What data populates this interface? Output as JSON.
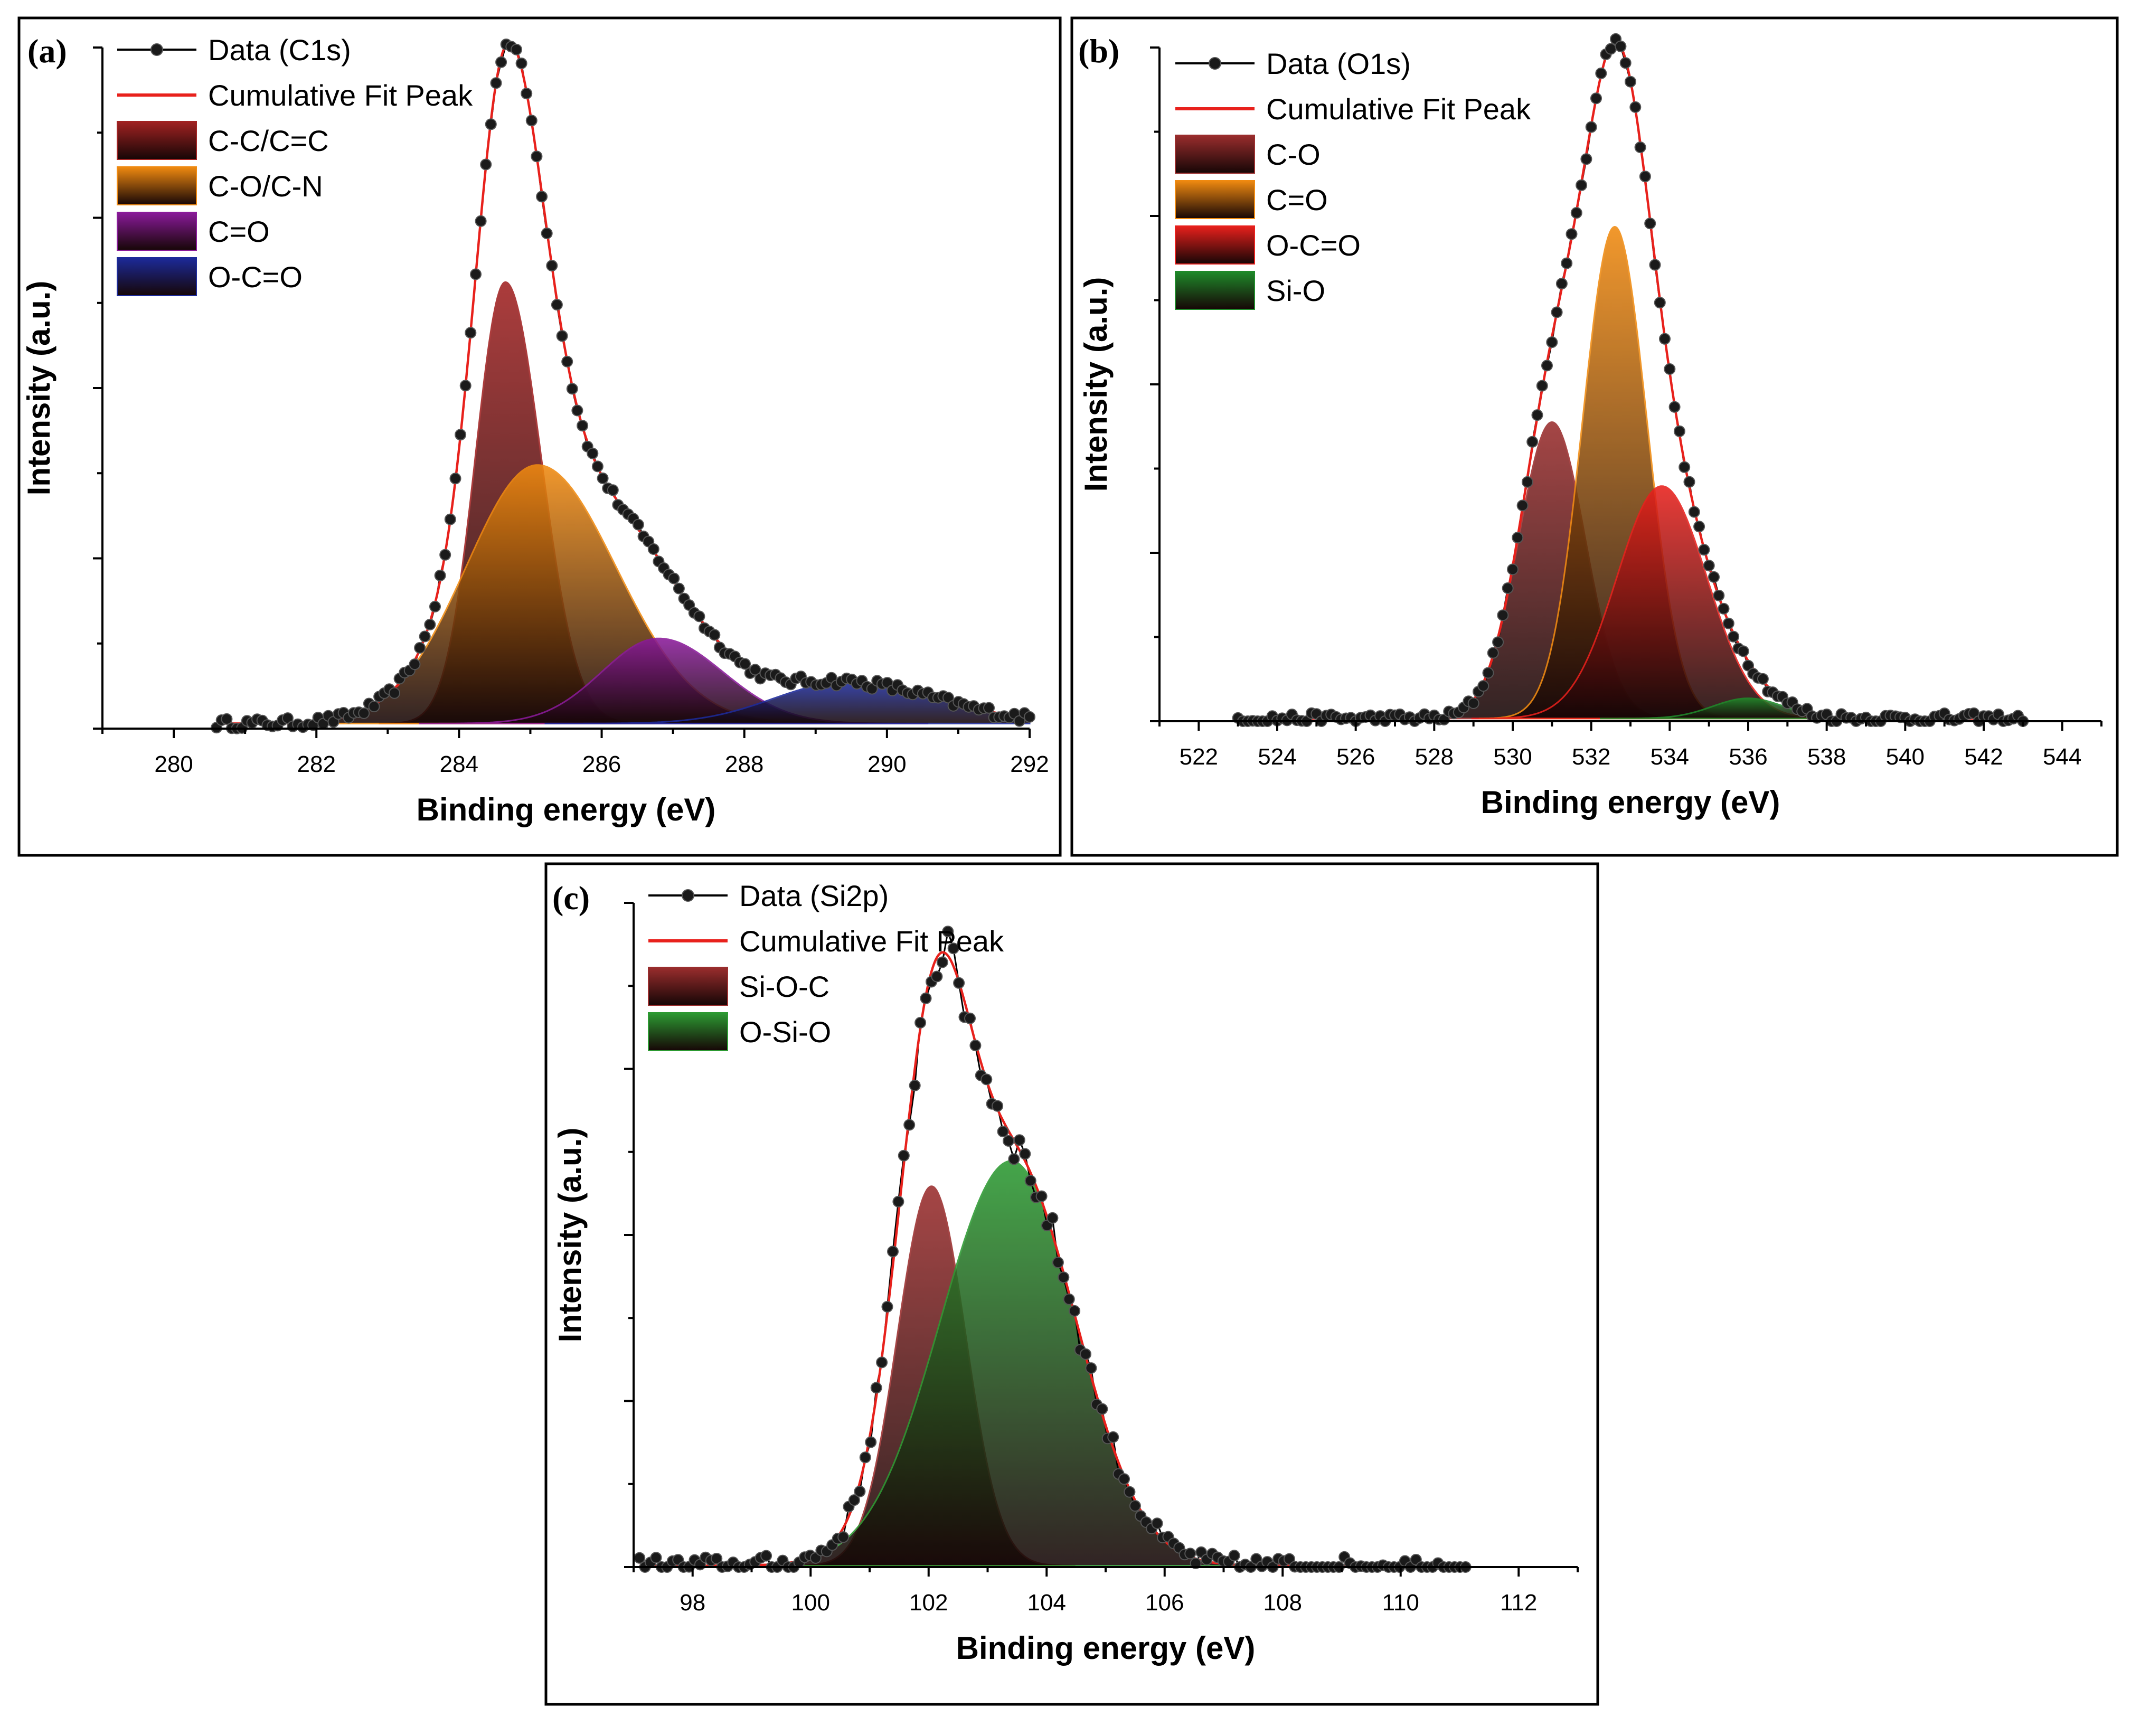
{
  "chart_data": [
    {
      "type": "line",
      "panel": "(a)",
      "xlabel": "Binding energy (eV)",
      "ylabel": "Intensity (a.u.)",
      "xlim": [
        279,
        292
      ],
      "xticks": [
        280,
        282,
        284,
        286,
        288,
        290,
        292
      ],
      "ylim": [
        0,
        1.08
      ],
      "x_data_range": [
        280.6,
        292
      ],
      "baseline": 0.008,
      "legend_position": "top-left",
      "legend": {
        "data_label": "Data (C1s)",
        "fit_label": "Cumulative Fit Peak",
        "components": [
          {
            "name": "C-C/C=C",
            "center": 284.65,
            "height": 0.7,
            "sigma_left": 0.42,
            "sigma_right": 0.5,
            "color": "#a12222"
          },
          {
            "name": "C-O/C-N",
            "center": 285.1,
            "height": 0.41,
            "sigma_left": 1.0,
            "sigma_right": 1.1,
            "color": "#f08a10"
          },
          {
            "name": "C=O",
            "center": 286.8,
            "height": 0.135,
            "sigma_left": 0.8,
            "sigma_right": 0.9,
            "color": "#8a1a9a"
          },
          {
            "name": "O-C=O",
            "center": 289.4,
            "height": 0.065,
            "sigma_left": 1.0,
            "sigma_right": 1.3,
            "color": "#1c2a9a"
          }
        ]
      }
    },
    {
      "type": "line",
      "panel": "(b)",
      "xlabel": "Binding energy (eV)",
      "ylabel": "Intensity (a.u.)",
      "xlim": [
        521,
        545
      ],
      "xticks": [
        522,
        524,
        526,
        528,
        530,
        532,
        534,
        536,
        538,
        540,
        542,
        544
      ],
      "ylim": [
        0,
        1.0
      ],
      "x_data_range": [
        523,
        543
      ],
      "baseline": 0.004,
      "legend_position": "top-left",
      "legend": {
        "data_label": "Data (O1s)",
        "fit_label": "Cumulative Fit Peak",
        "components": [
          {
            "name": "C-O",
            "center": 531.0,
            "height": 0.44,
            "sigma_left": 0.85,
            "sigma_right": 0.85,
            "color": "#9a2d2d"
          },
          {
            "name": "C=O",
            "center": 532.6,
            "height": 0.73,
            "sigma_left": 0.82,
            "sigma_right": 0.82,
            "color": "#f08a10"
          },
          {
            "name": "O-C=O",
            "center": 533.8,
            "height": 0.345,
            "sigma_left": 1.15,
            "sigma_right": 1.15,
            "color": "#e8201c"
          },
          {
            "name": "Si-O",
            "center": 536.0,
            "height": 0.03,
            "sigma_left": 0.9,
            "sigma_right": 0.9,
            "color": "#1f8a2a"
          }
        ]
      }
    },
    {
      "type": "line",
      "panel": "(c)",
      "xlabel": "Binding energy (eV)",
      "ylabel": "Intensity (a.u.)",
      "xlim": [
        97,
        113
      ],
      "xticks": [
        98,
        100,
        102,
        104,
        106,
        108,
        110,
        112
      ],
      "ylim": [
        0,
        1.05
      ],
      "x_data_range": [
        97.1,
        111.1
      ],
      "baseline": 0.002,
      "legend_position": "top-left",
      "legend": {
        "data_label": "Data (Si2p)",
        "fit_label": "Cumulative Fit Peak",
        "components": [
          {
            "name": "Si-O-C",
            "center": 102.05,
            "height": 0.6,
            "sigma_left": 0.58,
            "sigma_right": 0.58,
            "color": "#9a2d2d"
          },
          {
            "name": "O-Si-O",
            "center": 103.4,
            "height": 0.64,
            "sigma_left": 1.2,
            "sigma_right": 1.1,
            "color": "#2c9a32"
          }
        ]
      }
    }
  ]
}
